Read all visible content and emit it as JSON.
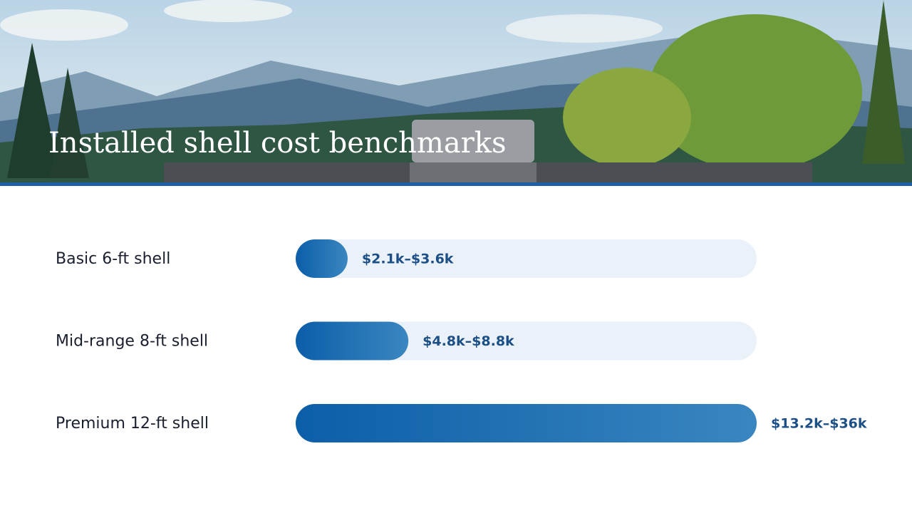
{
  "chart_data": {
    "type": "range-bar",
    "title": "Installed shell cost benchmarks",
    "categories": [
      "Basic 6-ft shell",
      "Mid-range 8-ft shell",
      "Premium 12-ft shell"
    ],
    "low": [
      2.1,
      4.8,
      13.2
    ],
    "high": [
      3.6,
      8.8,
      36
    ],
    "value_labels": [
      "$2.1k–$3.6k",
      "$4.8k–$8.8k",
      "$13.2k–$36k"
    ],
    "xlim": [
      0,
      36
    ],
    "color": "#0b5ea8"
  }
}
